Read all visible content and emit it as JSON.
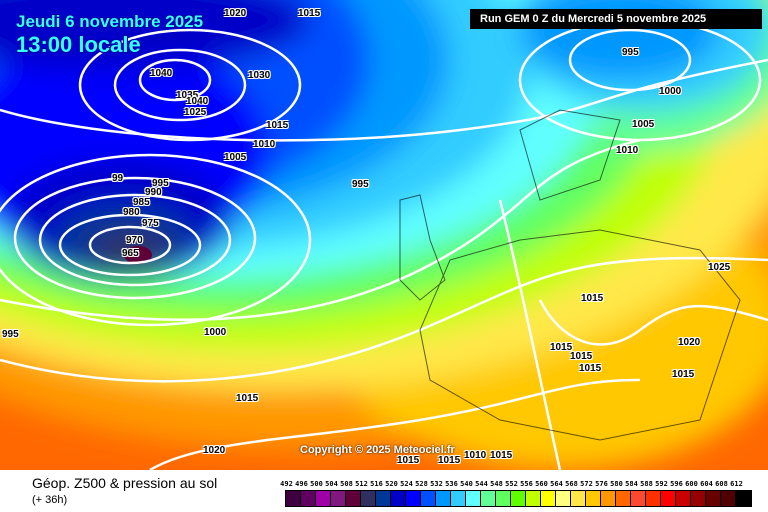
{
  "header": {
    "date": "Jeudi 6 novembre 2025",
    "time": "13:00 locale",
    "run": "Run GEM 0 Z du Mercredi 5 novembre 2025"
  },
  "copyright": "Copyright © 2025 Meteociel.fr",
  "footer": {
    "title": "Géop. Z500 & pression au sol",
    "lead": "(+ 36h)"
  },
  "isobar_labels": [
    "1020",
    "1015",
    "1040",
    "1030",
    "1035",
    "1040",
    "1025",
    "1015",
    "1010",
    "1005",
    "99",
    "995",
    "990",
    "985",
    "980",
    "975",
    "970",
    "965",
    "995",
    "995",
    "1000",
    "1005",
    "1010",
    "1025",
    "1015",
    "1020",
    "1015",
    "1015",
    "1015",
    "1015",
    "1000",
    "1015",
    "1020",
    "995",
    "1015",
    "1015",
    "1010",
    "1015"
  ],
  "legend": {
    "values": [
      "492",
      "496",
      "500",
      "504",
      "508",
      "512",
      "516",
      "520",
      "524",
      "528",
      "532",
      "536",
      "540",
      "544",
      "548",
      "552",
      "556",
      "560",
      "564",
      "568",
      "572",
      "576",
      "580",
      "584",
      "588",
      "592",
      "596",
      "600",
      "604",
      "608",
      "612"
    ],
    "colors": [
      "#3f0040",
      "#600060",
      "#a000a8",
      "#801880",
      "#600038",
      "#303060",
      "#003898",
      "#0000c8",
      "#0000ff",
      "#0050ff",
      "#0098ff",
      "#30ccff",
      "#60ffff",
      "#60ff98",
      "#60ff60",
      "#60ff00",
      "#c0ff00",
      "#ffff00",
      "#ffff80",
      "#ffe848",
      "#ffc800",
      "#ff9800",
      "#ff6800",
      "#ff4830",
      "#ff3000",
      "#ff0000",
      "#c80000",
      "#980000",
      "#680000",
      "#500000",
      "#000000"
    ]
  }
}
